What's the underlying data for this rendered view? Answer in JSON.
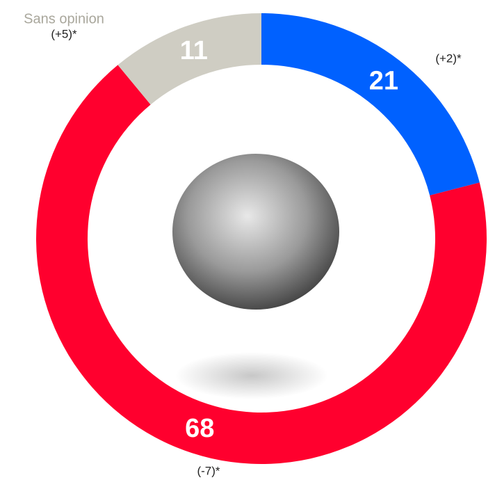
{
  "chart_data": {
    "type": "donut",
    "categories": [
      null,
      null,
      "Sans opinion"
    ],
    "values": [
      21,
      68,
      11
    ],
    "colors": [
      "#0061ff",
      "#ff002e",
      "#cfcdc3"
    ],
    "annotations": [
      "(+2)*",
      "(-7)*",
      "(+5)*"
    ]
  }
}
